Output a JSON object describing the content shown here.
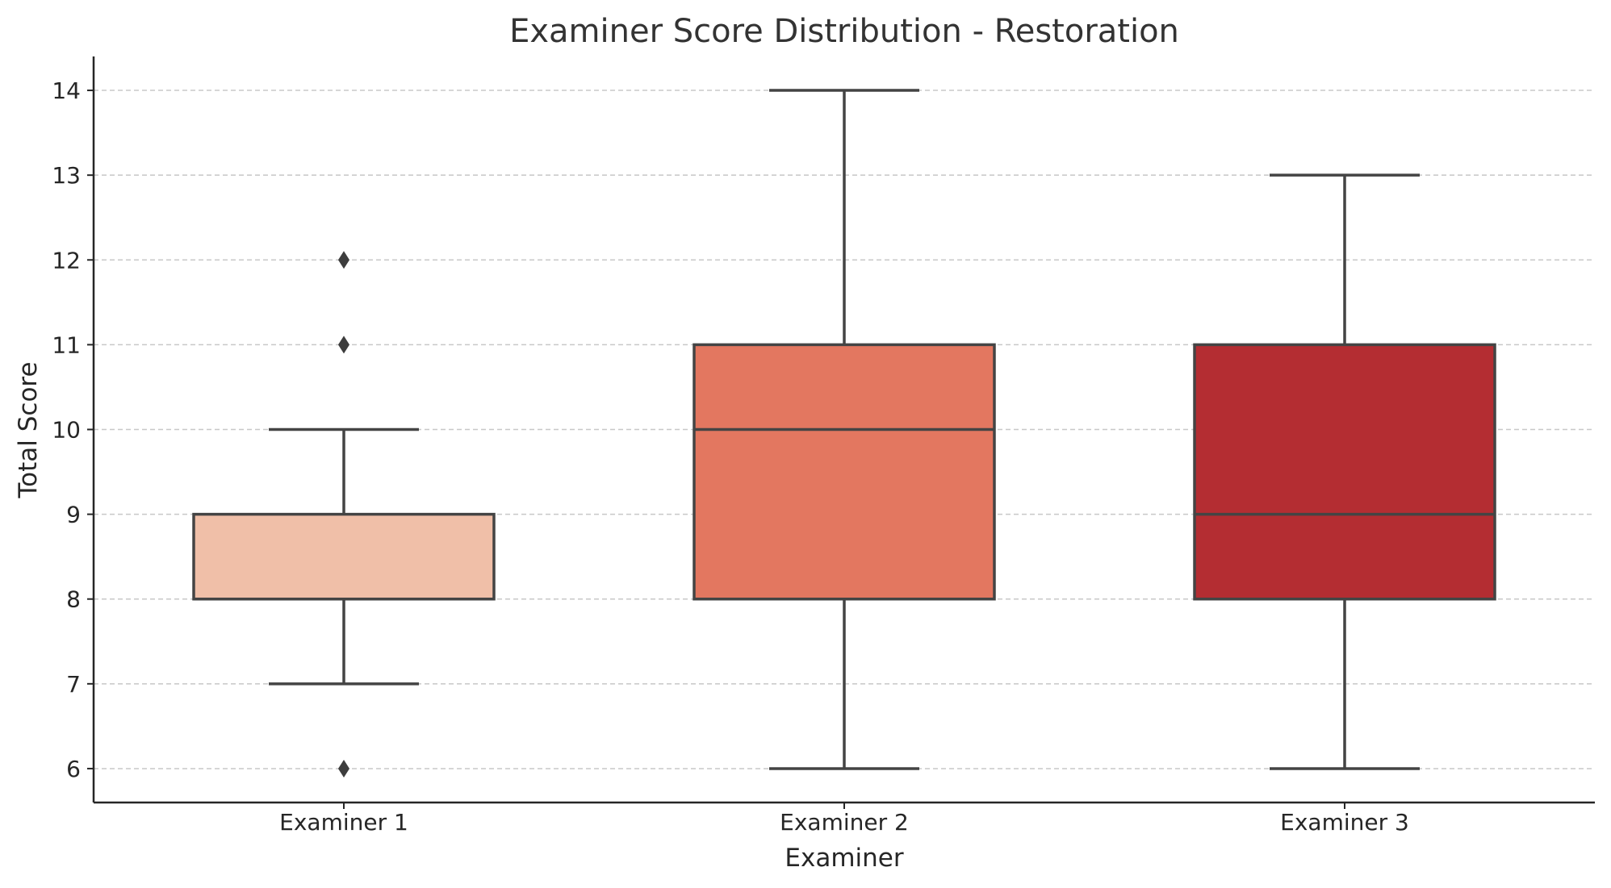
{
  "chart_data": {
    "type": "box",
    "title": "Examiner Score Distribution - Restoration",
    "xlabel": "Examiner",
    "ylabel": "Total Score",
    "ylim": [
      5.6,
      14.4
    ],
    "yticks": [
      6,
      7,
      8,
      9,
      10,
      11,
      12,
      13,
      14
    ],
    "grid": "y",
    "categories": [
      "Examiner 1",
      "Examiner 2",
      "Examiner 3"
    ],
    "series": [
      {
        "category": "Examiner 1",
        "whisker_low": 7,
        "q1": 8,
        "median": 8,
        "q3": 9,
        "whisker_high": 10,
        "outliers": [
          6,
          11,
          12
        ],
        "color": "#f0bfa8"
      },
      {
        "category": "Examiner 2",
        "whisker_low": 6,
        "q1": 8,
        "median": 10,
        "q3": 11,
        "whisker_high": 14,
        "outliers": [],
        "color": "#e37760"
      },
      {
        "category": "Examiner 3",
        "whisker_low": 6,
        "q1": 8,
        "median": 9,
        "q3": 11,
        "whisker_high": 13,
        "outliers": [],
        "color": "#b42d32"
      }
    ]
  }
}
